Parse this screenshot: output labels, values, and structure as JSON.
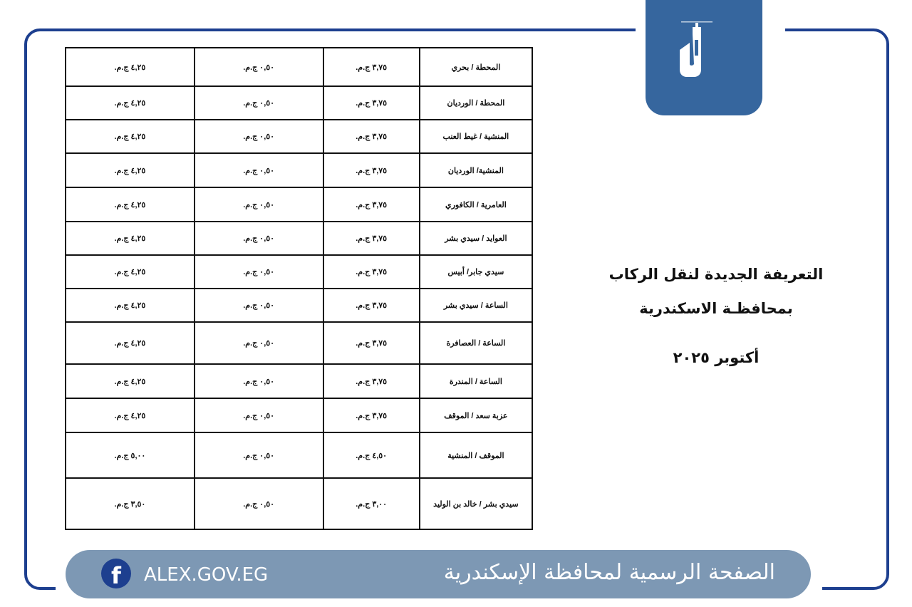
{
  "logo": {
    "icon": "lighthouse-logo",
    "color": "#36669e"
  },
  "title": {
    "line1": "التعريفة الجديدة لنقل الركاب",
    "line2": "بمحافظـة الاسكندرية",
    "date": "أكتوبر ٢٠٢٥"
  },
  "table": {
    "rows": [
      [
        "المحطة / بحري",
        "٣,٧٥ ج.م.",
        "٠,٥٠ ج.م.",
        "٤,٢٥ ج.م."
      ],
      [
        "المحطة / الورديان",
        "٣,٧٥ ج.م.",
        "٠,٥٠ ج.م.",
        "٤,٢٥ ج.م."
      ],
      [
        "المنشية / غيط العنب",
        "٣,٧٥ ج.م.",
        "٠,٥٠ ج.م.",
        "٤,٢٥ ج.م."
      ],
      [
        "المنشية/ الورديان",
        "٣,٧٥ ج.م.",
        "٠,٥٠ ج.م.",
        "٤,٢٥ ج.م."
      ],
      [
        "العامرية / الكافوري",
        "٣,٧٥ ج.م.",
        "٠,٥٠ ج.م.",
        "٤,٢٥ ج.م."
      ],
      [
        "العوايد / سيدي بشر",
        "٣,٧٥ ج.م.",
        "٠,٥٠ ج.م.",
        "٤,٢٥ ج.م."
      ],
      [
        "سيدي جابر/ أبيس",
        "٣,٧٥ ج.م.",
        "٠,٥٠ ج.م.",
        "٤,٢٥ ج.م."
      ],
      [
        "الساعة / سيدي بشر",
        "٣,٧٥ ج.م.",
        "٠,٥٠ ج.م.",
        "٤,٢٥ ج.م."
      ],
      [
        "الساعة / العصافرة",
        "٣,٧٥ ج.م.",
        "٠,٥٠ ج.م.",
        "٤,٢٥ ج.م."
      ],
      [
        "الساعة / المندرة",
        "٣,٧٥ ج.م.",
        "٠,٥٠ ج.م.",
        "٤,٢٥ ج.م."
      ],
      [
        "عزبة سعد / الموقف",
        "٣,٧٥ ج.م.",
        "٠,٥٠ ج.م.",
        "٤,٢٥ ج.م."
      ],
      [
        "الموقف / المنشية",
        "٤,٥٠ ج.م.",
        "٠,٥٠ ج.م.",
        "٥,٠٠ ج.م."
      ],
      [
        "سيدي بشر / خالد بن الوليد",
        "٣,٠٠ ج.م.",
        "٠,٥٠ ج.م.",
        "٣,٥٠ ج.م."
      ]
    ]
  },
  "footer": {
    "site": "ALEX.GOV.EG",
    "page_name": "الصفحة الرسمية لمحافظة الإسكندرية",
    "icon": "facebook-icon"
  }
}
